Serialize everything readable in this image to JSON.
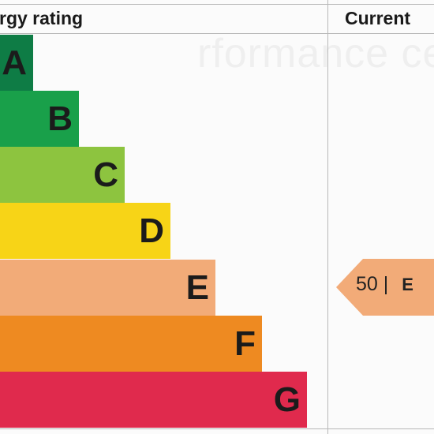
{
  "watermark_text": "rformance certifica",
  "header": {
    "rating_label": "rgy rating",
    "current_label": "Current"
  },
  "bands": [
    {
      "letter": "A",
      "color": "#0e7c45"
    },
    {
      "letter": "B",
      "color": "#19a04a"
    },
    {
      "letter": "C",
      "color": "#8dc43f"
    },
    {
      "letter": "D",
      "color": "#f7d417"
    },
    {
      "letter": "E",
      "color": "#f2ab78"
    },
    {
      "letter": "F",
      "color": "#ee8a21"
    },
    {
      "letter": "G",
      "color": "#e02a4d"
    }
  ],
  "current_rating": {
    "score": "50",
    "separator": "|",
    "band": "E",
    "color": "#f2ab78"
  }
}
